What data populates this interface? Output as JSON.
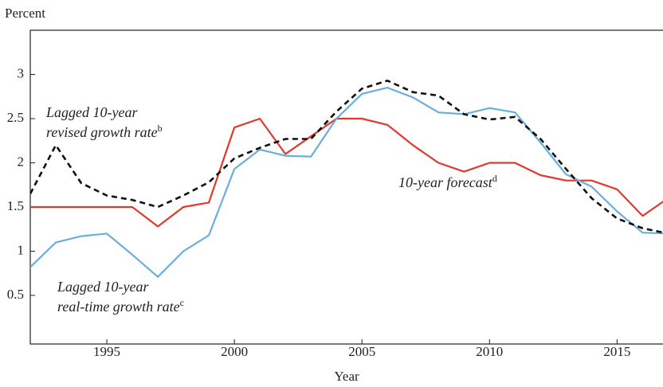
{
  "chart_data": {
    "type": "line",
    "y_label": "Percent",
    "x_label": "Year",
    "x": [
      1992,
      1993,
      1994,
      1995,
      1996,
      1997,
      1998,
      1999,
      2000,
      2001,
      2002,
      2003,
      2004,
      2005,
      2006,
      2007,
      2008,
      2009,
      2010,
      2011,
      2012,
      2013,
      2014,
      2015,
      2016,
      2017
    ],
    "series": [
      {
        "color": "#e0392b",
        "dash": false,
        "values": [
          1.5,
          1.5,
          1.5,
          1.5,
          1.5,
          1.28,
          1.5,
          1.55,
          2.4,
          2.5,
          2.1,
          2.3,
          2.5,
          2.5,
          2.43,
          2.2,
          2.0,
          1.9,
          2.0,
          2.0,
          1.86,
          1.8,
          1.8,
          1.7,
          1.4,
          1.6
        ]
      },
      {
        "color": "#6aaedb",
        "dash": false,
        "values": [
          0.82,
          1.1,
          1.17,
          1.2,
          0.96,
          0.71,
          1.0,
          1.18,
          1.93,
          2.15,
          2.08,
          2.07,
          2.5,
          2.78,
          2.85,
          2.74,
          2.57,
          2.55,
          2.62,
          2.57,
          2.23,
          1.87,
          1.73,
          1.45,
          1.21,
          1.2
        ]
      },
      {
        "color": "#111111",
        "dash": true,
        "values": [
          1.65,
          2.2,
          1.77,
          1.63,
          1.58,
          1.5,
          1.63,
          1.78,
          2.05,
          2.17,
          2.27,
          2.27,
          2.58,
          2.84,
          2.93,
          2.8,
          2.76,
          2.55,
          2.49,
          2.52,
          2.27,
          1.93,
          1.6,
          1.37,
          1.26,
          1.2
        ]
      }
    ],
    "annotations": [
      {
        "lines": [
          "Lagged 10-year",
          "revised growth rate"
        ],
        "sup": "b"
      },
      {
        "lines": [
          "10-year forecast"
        ],
        "sup": "d"
      },
      {
        "lines": [
          "Lagged 10-year",
          "real-time growth rate"
        ],
        "sup": "c"
      }
    ],
    "xlim": [
      1992,
      2016.8
    ],
    "ylim": [
      -0.05,
      3.5
    ],
    "xticks": [
      1995,
      2000,
      2005,
      2010,
      2015
    ],
    "yticks": [
      0.5,
      1,
      1.5,
      2,
      2.5,
      3
    ]
  }
}
